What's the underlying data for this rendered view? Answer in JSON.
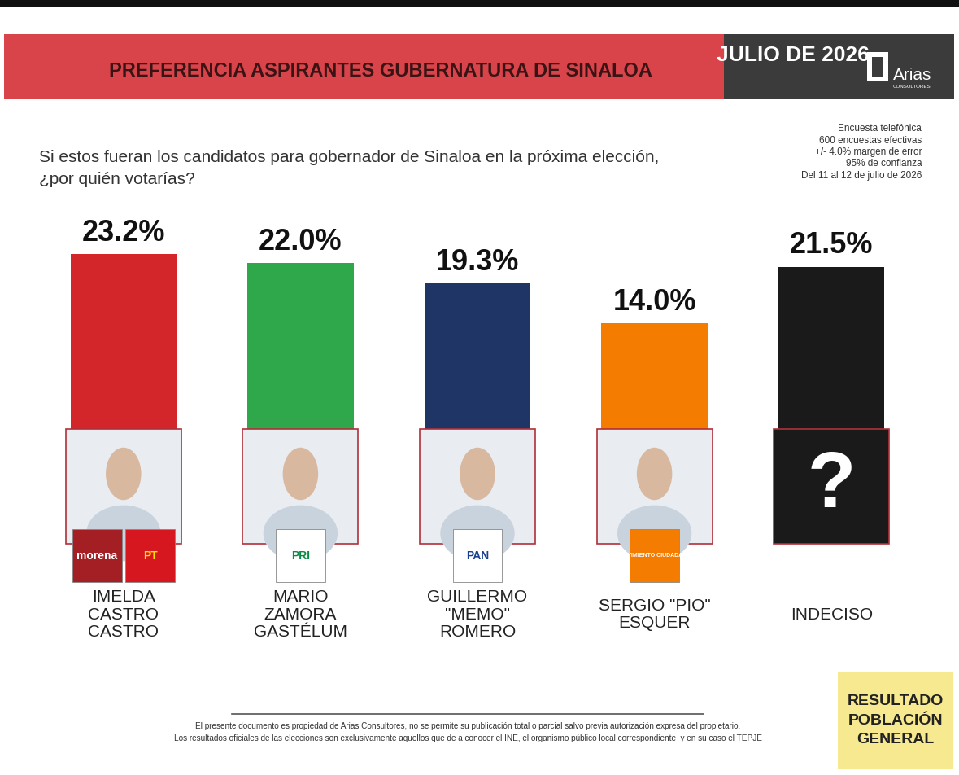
{
  "chart_data": {
    "type": "bar",
    "title": "PREFERENCIA ASPIRANTES GUBERNATURA DE SINALOA",
    "date_label": "JULIO DE 2026",
    "brand": "Arias",
    "brand_sub": "CONSULTORES",
    "subtitle": "Si estos fueran los candidatos para gobernador de Sinaloa en la próxima elección,\n¿por quién votarías?",
    "methodology": [
      "Encuesta telefónica",
      "600 encuestas efectivas",
      "+/- 4.0% margen de error",
      "95% de confianza",
      "Del 11 al 12 de julio de 2026"
    ],
    "categories": [
      "IMELDA\nCASTRO\nCASTRO",
      "MARIO\nZAMORA\nGASTÉLUM",
      "GUILLERMO\n\"MEMO\"\nROMERO",
      "SERGIO \"PIO\"\nESQUER",
      "INDECISO"
    ],
    "values": [
      23.2,
      22.0,
      19.3,
      14.0,
      21.5
    ],
    "value_labels": [
      "23.2%",
      "22.0%",
      "19.3%",
      "14.0%",
      "21.5%"
    ],
    "colors": [
      "#d2262b",
      "#2ea84a",
      "#1f3566",
      "#f47c00",
      "#1a1a1a"
    ],
    "parties": [
      [
        "morena",
        "PT"
      ],
      [
        "PRI"
      ],
      [
        "PAN"
      ],
      [
        "MOVIMIENTO CIUDADANO"
      ],
      []
    ],
    "undecided_symbol": "?",
    "footer": [
      "El presente documento es propiedad de Arias Consultores, no se permite su publicación total o parcial salvo previa autorización expresa del propietario.",
      "Los resultados oficiales de las elecciones son exclusivamente aquellos que de a conocer el INE, el organismo público local correspondiente  y en su caso el TEPJE"
    ],
    "stamp": "RESULTADO\nPOBLACIÓN\nGENERAL",
    "ylim": [
      0,
      23.2
    ],
    "tick_labels": false,
    "data_labels": true
  }
}
